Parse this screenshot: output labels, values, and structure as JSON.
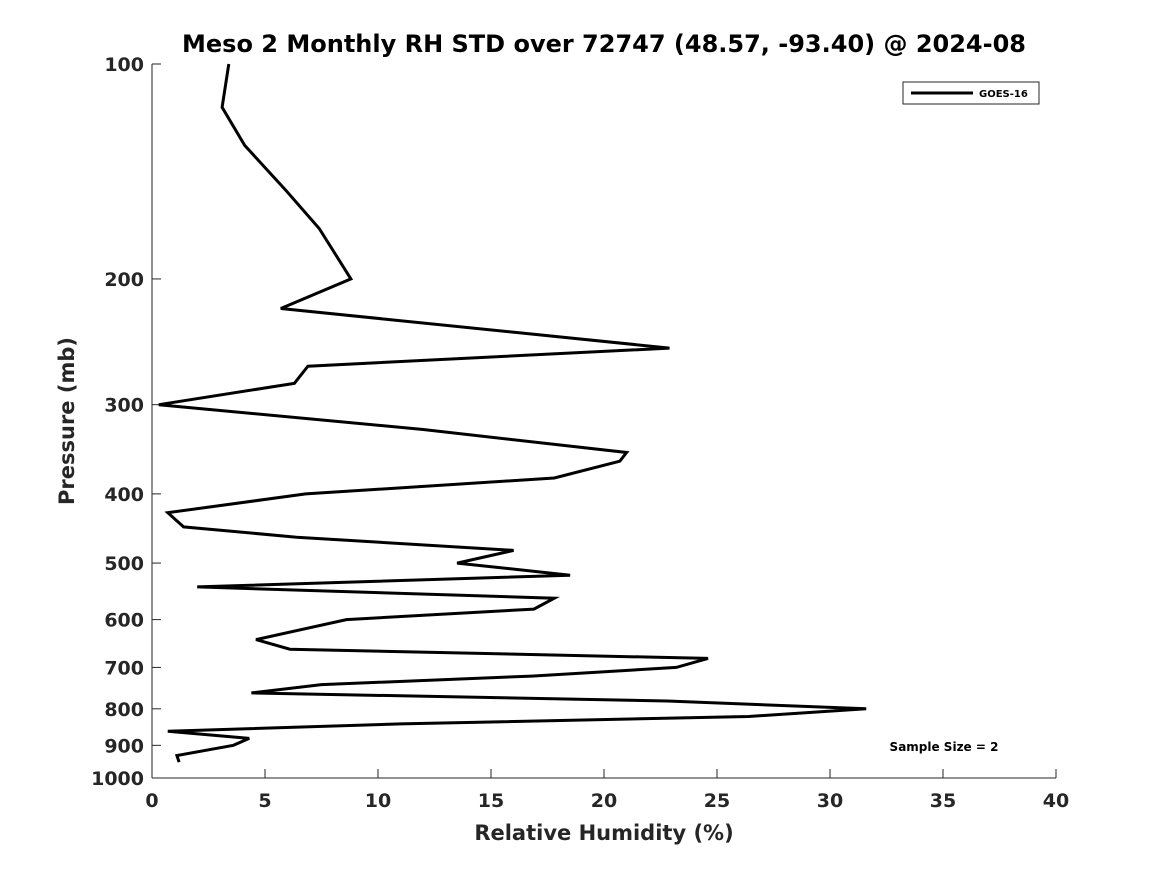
{
  "chart_data": {
    "type": "line",
    "title": "Meso 2 Monthly RH STD over 72747 (48.57, -93.40) @ 2024-08",
    "xlabel": "Relative Humidity (%)",
    "ylabel": "Pressure (mb)",
    "xlim": [
      0,
      40
    ],
    "ylim": [
      100,
      1000
    ],
    "y_scale": "log",
    "y_direction": "reversed",
    "x_ticks": [
      0,
      5,
      10,
      15,
      20,
      25,
      30,
      35,
      40
    ],
    "y_ticks": [
      100,
      200,
      300,
      400,
      500,
      600,
      700,
      800,
      900,
      1000
    ],
    "grid": false,
    "legend_position": "top-right",
    "series": [
      {
        "name": "GOES-16",
        "color": "#000000",
        "x": [
          3.4,
          3.1,
          4.1,
          5.9,
          7.4,
          8.8,
          5.7,
          22.9,
          6.9,
          6.3,
          0.3,
          12.0,
          21.0,
          20.7,
          17.8,
          6.8,
          0.7,
          1.4,
          6.4,
          16.0,
          13.5,
          18.5,
          2.0,
          17.8,
          16.9,
          8.6,
          4.6,
          6.1,
          24.6,
          23.2,
          16.8,
          7.5,
          4.4,
          22.8,
          31.6,
          26.4,
          11.0,
          0.7,
          4.3,
          3.6,
          1.1,
          1.2
        ],
        "y": [
          100,
          115,
          130,
          150,
          170,
          200,
          220,
          250,
          265,
          280,
          300,
          325,
          350,
          360,
          380,
          400,
          425,
          445,
          460,
          480,
          500,
          520,
          540,
          560,
          580,
          600,
          640,
          660,
          680,
          700,
          720,
          740,
          760,
          780,
          800,
          820,
          840,
          860,
          880,
          900,
          930,
          950
        ]
      }
    ],
    "annotations": [
      "Sample Size = 2"
    ]
  }
}
